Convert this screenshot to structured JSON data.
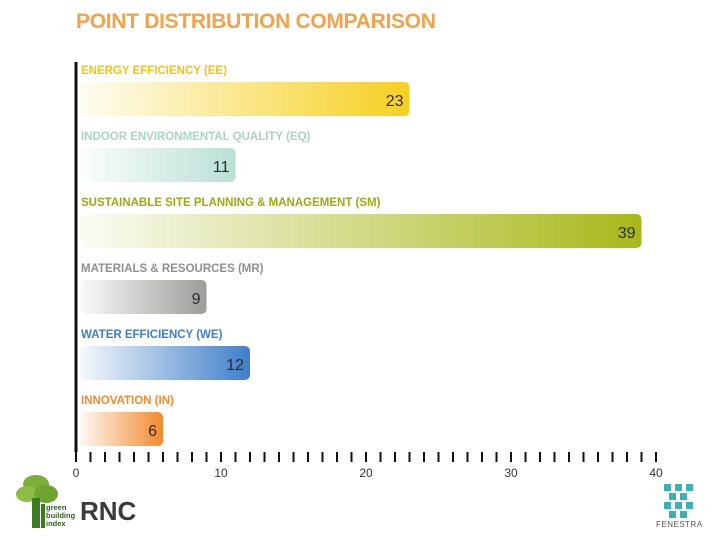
{
  "chart_data": {
    "type": "bar",
    "orientation": "horizontal",
    "title": "POINT DISTRIBUTION COMPARISON",
    "categories": [
      "ENERGY EFFICIENCY (EE)",
      "INDOOR ENVIRONMENTAL QUALITY (EQ)",
      "SUSTAINABLE SITE PLANNING & MANAGEMENT (SM)",
      "MATERIALS & RESOURCES (MR)",
      "WATER EFFICIENCY (WE)",
      "INNOVATION (IN)"
    ],
    "values": [
      23,
      11,
      39,
      9,
      12,
      6
    ],
    "colors": [
      "#f5d020",
      "#b9e0d6",
      "#a8b81a",
      "#9c9c9a",
      "#3f7fc9",
      "#f28a2e"
    ],
    "label_colors": [
      "#f2c418",
      "#a9d4c8",
      "#9aab14",
      "#8f8f8d",
      "#3f7fc9",
      "#f28a2e"
    ],
    "xlim": [
      0,
      40
    ],
    "x_ticks": [
      0,
      10,
      20,
      30,
      40
    ],
    "grid": false,
    "legend": "none"
  },
  "footer": {
    "brand": "RNC",
    "left_logo_text": [
      "green",
      "building",
      "index"
    ],
    "right_logo_text": "FENESTRA"
  }
}
